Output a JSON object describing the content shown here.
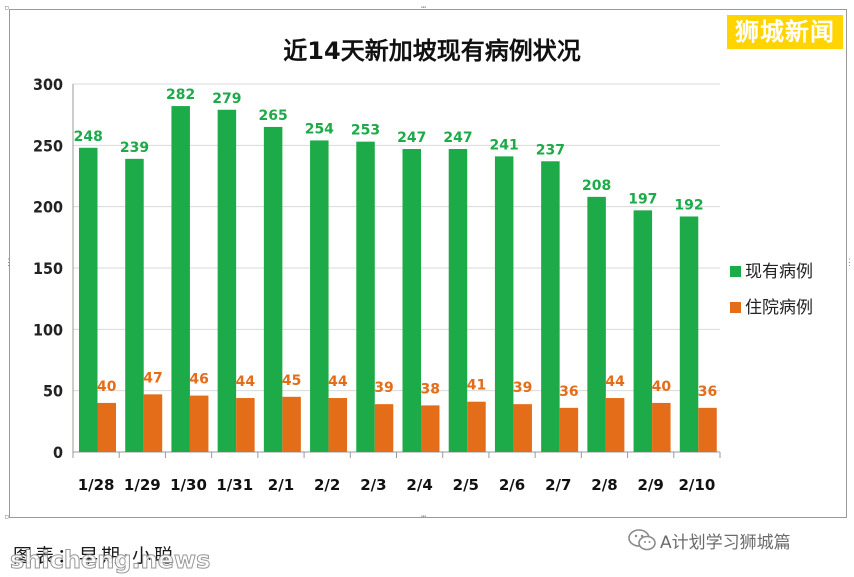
{
  "watermark": {
    "logo_text": "狮城新闻",
    "logo_color": "#ffd400",
    "site_text": "shicheng.news"
  },
  "caption": {
    "source_text": "图表：早期·小聪"
  },
  "wechat": {
    "icon": "wechat-icon",
    "label": "A计划学习狮城篇"
  },
  "colors": {
    "current": "#1daa48",
    "hospital": "#e46d1a",
    "current_label": "#1daa48",
    "hospital_label": "#e46d1a"
  },
  "chart_data": {
    "type": "bar",
    "title": "近14天新加坡现有病例状况",
    "xlabel": "",
    "ylabel": "",
    "ylim": [
      0,
      300
    ],
    "yticks": [
      0,
      50,
      100,
      150,
      200,
      250,
      300
    ],
    "grid": true,
    "legend_position": "right",
    "categories": [
      "1/28",
      "1/29",
      "1/30",
      "1/31",
      "2/1",
      "2/2",
      "2/3",
      "2/4",
      "2/5",
      "2/6",
      "2/7",
      "2/8",
      "2/9",
      "2/10"
    ],
    "series": [
      {
        "name": "现有病例",
        "values": [
          248,
          239,
          282,
          279,
          265,
          254,
          253,
          247,
          247,
          241,
          237,
          208,
          197,
          192
        ]
      },
      {
        "name": "住院病例",
        "values": [
          40,
          47,
          46,
          44,
          45,
          44,
          39,
          38,
          41,
          39,
          36,
          44,
          40,
          36
        ]
      }
    ]
  }
}
